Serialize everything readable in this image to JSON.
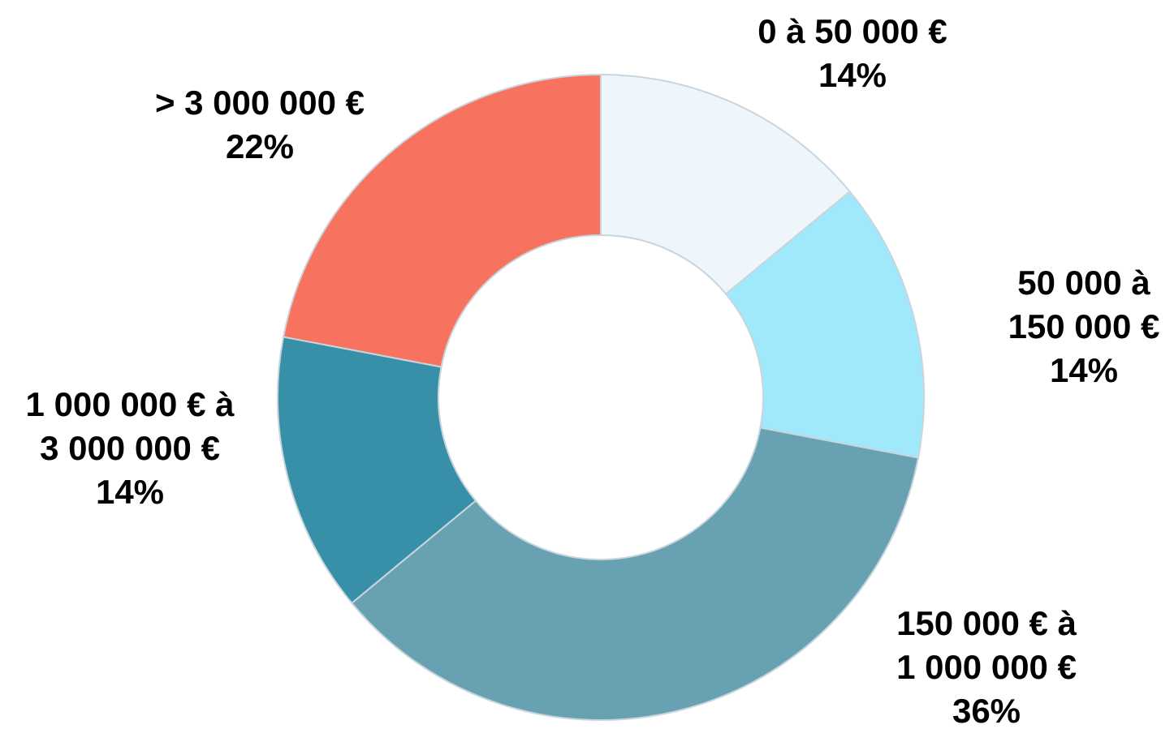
{
  "chart_data": {
    "type": "donut",
    "categories": [
      "0 à 50 000 €",
      "50 000 à 150 000 €",
      "150 000 € à 1 000 000 €",
      "1 000 000 € à 3 000 000 €",
      "> 3 000 000 €"
    ],
    "values": [
      14,
      14,
      36,
      14,
      22
    ],
    "value_labels": [
      "14%",
      "14%",
      "36%",
      "14%",
      "22%"
    ],
    "colors": [
      "#eef6fc",
      "#a0e8fb",
      "#67a1b2",
      "#378fa8",
      "#f87260"
    ]
  }
}
